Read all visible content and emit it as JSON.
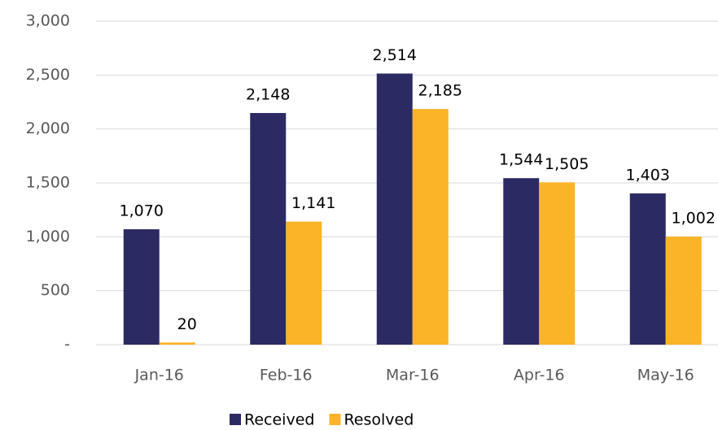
{
  "chart_data": {
    "type": "bar",
    "categories": [
      "Jan-16",
      "Feb-16",
      "Mar-16",
      "Apr-16",
      "May-16"
    ],
    "series": [
      {
        "name": "Received",
        "color": "#2b2a63",
        "values": [
          1070,
          2148,
          2514,
          1544,
          1403
        ],
        "value_labels": [
          "1,070",
          "2,148",
          "2,514",
          "1,544",
          "1,403"
        ]
      },
      {
        "name": "Resolved",
        "color": "#fbb327",
        "values": [
          20,
          1141,
          2185,
          1505,
          1002
        ],
        "value_labels": [
          "20",
          "1,141",
          "2,185",
          "1,505",
          "1,002"
        ]
      }
    ],
    "ylim": [
      0,
      3000
    ],
    "yticks": [
      {
        "value": 0,
        "label": "-"
      },
      500,
      {
        "value": 1000,
        "label": "1,000"
      },
      {
        "value": 1500,
        "label": "1,500"
      },
      {
        "value": 2000,
        "label": "2,000"
      },
      {
        "value": 2500,
        "label": "2,500"
      },
      {
        "value": 3000,
        "label": "3,000"
      }
    ],
    "grid": true,
    "legend": "bottom"
  }
}
